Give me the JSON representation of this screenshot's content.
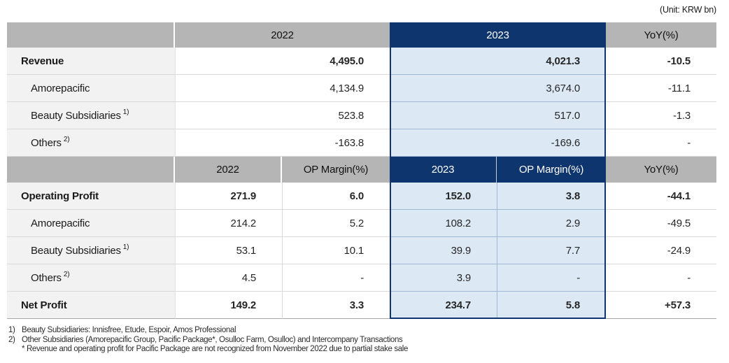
{
  "unit_label": "(Unit: KRW bn)",
  "colors": {
    "navy": "#0e356e",
    "header_gray": "#b5b5b5",
    "label_gray": "#f2f2f2",
    "highlight_blue": "#dce9f5"
  },
  "top": {
    "headers": {
      "y2022": "2022",
      "y2023": "2023",
      "yoy": "YoY(%)"
    },
    "rows": [
      {
        "label": "Revenue",
        "v2022": "4,495.0",
        "v2023": "4,021.3",
        "yoy": "-10.5"
      },
      {
        "label": "Amorepacific",
        "v2022": "4,134.9",
        "v2023": "3,674.0",
        "yoy": "-11.1"
      },
      {
        "label": "Beauty Subsidiaries",
        "sup": "1)",
        "v2022": "523.8",
        "v2023": "517.0",
        "yoy": "-1.3"
      },
      {
        "label": "Others",
        "sup": "2)",
        "v2022": "-163.8",
        "v2023": "-169.6",
        "yoy": "-"
      }
    ]
  },
  "bottom": {
    "headers": {
      "y2022": "2022",
      "m2022": "OP Margin(%)",
      "y2023": "2023",
      "m2023": "OP Margin(%)",
      "yoy": "YoY(%)"
    },
    "rows": [
      {
        "label": "Operating Profit",
        "v2022": "271.9",
        "m2022": "6.0",
        "v2023": "152.0",
        "m2023": "3.8",
        "yoy": "-44.1"
      },
      {
        "label": "Amorepacific",
        "v2022": "214.2",
        "m2022": "5.2",
        "v2023": "108.2",
        "m2023": "2.9",
        "yoy": "-49.5"
      },
      {
        "label": "Beauty Subsidiaries",
        "sup": "1)",
        "v2022": "53.1",
        "m2022": "10.1",
        "v2023": "39.9",
        "m2023": "7.7",
        "yoy": "-24.9"
      },
      {
        "label": "Others",
        "sup": "2)",
        "v2022": "4.5",
        "m2022": "-",
        "v2023": "3.9",
        "m2023": "-",
        "yoy": "-"
      },
      {
        "label": "Net Profit",
        "v2022": "149.2",
        "m2022": "3.3",
        "v2023": "234.7",
        "m2023": "5.8",
        "yoy": "+57.3"
      }
    ]
  },
  "footnotes": [
    {
      "marker": "1)",
      "text": "Beauty Subsidiaries: Innisfree, Etude, Espoir, Amos Professional"
    },
    {
      "marker": "2)",
      "text": "Other Subsidiaries (Amorepacific Group, Pacific Package*, Osulloc Farm, Osulloc) and Intercompany Transactions"
    },
    {
      "marker": "",
      "text": "* Revenue and operating profit for Pacific Package are not recognized from November 2022 due to partial stake sale"
    }
  ]
}
